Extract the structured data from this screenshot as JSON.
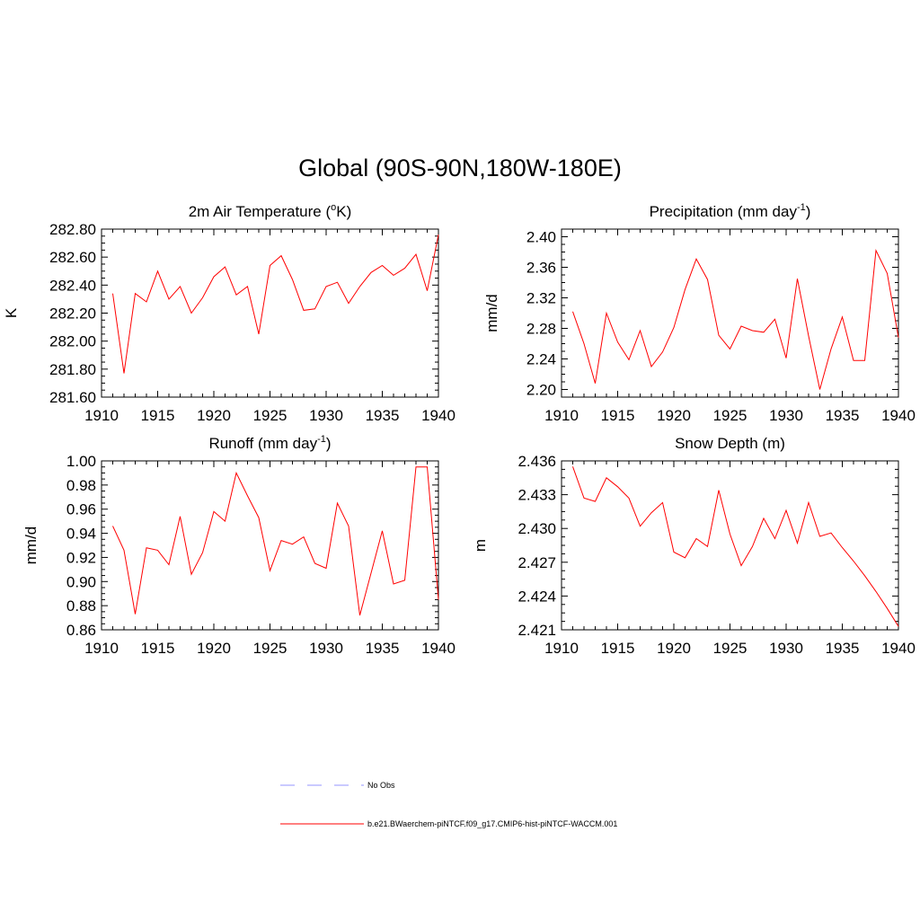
{
  "title": "Global (90S-90N,180W-180E)",
  "colors": {
    "model": "#ff0000",
    "obs": "#aaaaff",
    "axis": "#000000"
  },
  "legend": [
    {
      "label": "No Obs",
      "style": "dashed",
      "color": "#aaaaff"
    },
    {
      "label": "b.e21.BWaerchem-piNTCF.f09_g17.CMIP6-hist-piNTCF-WACCM.001",
      "style": "solid",
      "color": "#ff0000"
    }
  ],
  "chart_data": [
    {
      "type": "line",
      "title": "2m Air Temperature (oK)",
      "title_parts": [
        "2m Air Temperature (",
        "o",
        "K)"
      ],
      "title_style": "sup",
      "ylabel": "K",
      "xlim": [
        1910,
        1940
      ],
      "ylim": [
        281.6,
        282.8
      ],
      "xticks": [
        1910,
        1915,
        1920,
        1925,
        1930,
        1935,
        1940
      ],
      "yticks": [
        "281.60",
        "281.80",
        "282.00",
        "282.20",
        "282.40",
        "282.60",
        "282.80"
      ],
      "x": [
        1911,
        1912,
        1913,
        1914,
        1915,
        1916,
        1917,
        1918,
        1919,
        1920,
        1921,
        1922,
        1923,
        1924,
        1925,
        1926,
        1927,
        1928,
        1929,
        1930,
        1931,
        1932,
        1933,
        1934,
        1935,
        1936,
        1937,
        1938,
        1939,
        1940
      ],
      "values": [
        282.34,
        281.77,
        282.34,
        282.28,
        282.5,
        282.3,
        282.39,
        282.2,
        282.31,
        282.46,
        282.53,
        282.33,
        282.39,
        282.05,
        282.54,
        282.61,
        282.44,
        282.22,
        282.23,
        282.39,
        282.42,
        282.27,
        282.39,
        282.49,
        282.54,
        282.47,
        282.52,
        282.62,
        282.36,
        282.76
      ]
    },
    {
      "type": "line",
      "title": "Precipitation (mm day-1)",
      "title_parts": [
        "Precipitation (mm day",
        "-1",
        ")"
      ],
      "title_style": "sup",
      "ylabel": "mm/d",
      "xlim": [
        1910,
        1940
      ],
      "ylim": [
        2.19,
        2.41
      ],
      "xticks": [
        1910,
        1915,
        1920,
        1925,
        1930,
        1935,
        1940
      ],
      "yticks": [
        "2.20",
        "2.24",
        "2.28",
        "2.32",
        "2.36",
        "2.40"
      ],
      "x": [
        1911,
        1912,
        1913,
        1914,
        1915,
        1916,
        1917,
        1918,
        1919,
        1920,
        1921,
        1922,
        1923,
        1924,
        1925,
        1926,
        1927,
        1928,
        1929,
        1930,
        1931,
        1932,
        1933,
        1934,
        1935,
        1936,
        1937,
        1938,
        1939,
        1940
      ],
      "values": [
        2.302,
        2.26,
        2.208,
        2.3,
        2.262,
        2.239,
        2.277,
        2.23,
        2.249,
        2.281,
        2.331,
        2.371,
        2.344,
        2.271,
        2.253,
        2.283,
        2.277,
        2.275,
        2.292,
        2.241,
        2.345,
        2.27,
        2.2,
        2.253,
        2.295,
        2.238,
        2.238,
        2.382,
        2.352,
        2.268
      ]
    },
    {
      "type": "line",
      "title": "Runoff (mm day-1)",
      "title_parts": [
        "Runoff (mm day",
        "-1",
        ")"
      ],
      "title_style": "sup",
      "ylabel": "mm/d",
      "xlim": [
        1910,
        1940
      ],
      "ylim": [
        0.86,
        1.0
      ],
      "xticks": [
        1910,
        1915,
        1920,
        1925,
        1930,
        1935,
        1940
      ],
      "yticks": [
        "0.86",
        "0.88",
        "0.90",
        "0.92",
        "0.94",
        "0.96",
        "0.98",
        "1.00"
      ],
      "x": [
        1911,
        1912,
        1913,
        1914,
        1915,
        1916,
        1917,
        1918,
        1919,
        1920,
        1921,
        1922,
        1923,
        1924,
        1925,
        1926,
        1927,
        1928,
        1929,
        1930,
        1931,
        1932,
        1933,
        1934,
        1935,
        1936,
        1937,
        1938,
        1939,
        1940
      ],
      "values": [
        0.946,
        0.926,
        0.873,
        0.928,
        0.926,
        0.914,
        0.954,
        0.906,
        0.924,
        0.958,
        0.95,
        0.99,
        0.971,
        0.953,
        0.909,
        0.934,
        0.931,
        0.937,
        0.915,
        0.911,
        0.965,
        0.946,
        0.872,
        0.907,
        0.942,
        0.898,
        0.901,
        0.995,
        0.995,
        0.885
      ]
    },
    {
      "type": "line",
      "title": "Snow Depth (m)",
      "title_parts": [
        "Snow Depth (m)",
        "",
        ""
      ],
      "title_style": "plain",
      "ylabel": "m",
      "xlim": [
        1910,
        1940
      ],
      "ylim": [
        2.421,
        2.436
      ],
      "xticks": [
        1910,
        1915,
        1920,
        1925,
        1930,
        1935,
        1940
      ],
      "yticks": [
        "2.421",
        "2.424",
        "2.427",
        "2.430",
        "2.433",
        "2.436"
      ],
      "x": [
        1911,
        1912,
        1913,
        1914,
        1915,
        1916,
        1917,
        1918,
        1919,
        1920,
        1921,
        1922,
        1923,
        1924,
        1925,
        1926,
        1927,
        1928,
        1929,
        1930,
        1931,
        1932,
        1933,
        1934,
        1935,
        1936,
        1937,
        1938,
        1939,
        1940
      ],
      "values": [
        2.4355,
        2.4327,
        2.4324,
        2.4345,
        2.4337,
        2.4327,
        2.4302,
        2.4314,
        2.4323,
        2.4279,
        2.4274,
        2.4291,
        2.4284,
        2.4334,
        2.4295,
        2.4267,
        2.4284,
        2.4309,
        2.4291,
        2.4316,
        2.4287,
        2.4323,
        2.4293,
        2.4296,
        2.4283,
        2.4271,
        2.4258,
        2.4244,
        2.4229,
        2.4213
      ]
    }
  ]
}
